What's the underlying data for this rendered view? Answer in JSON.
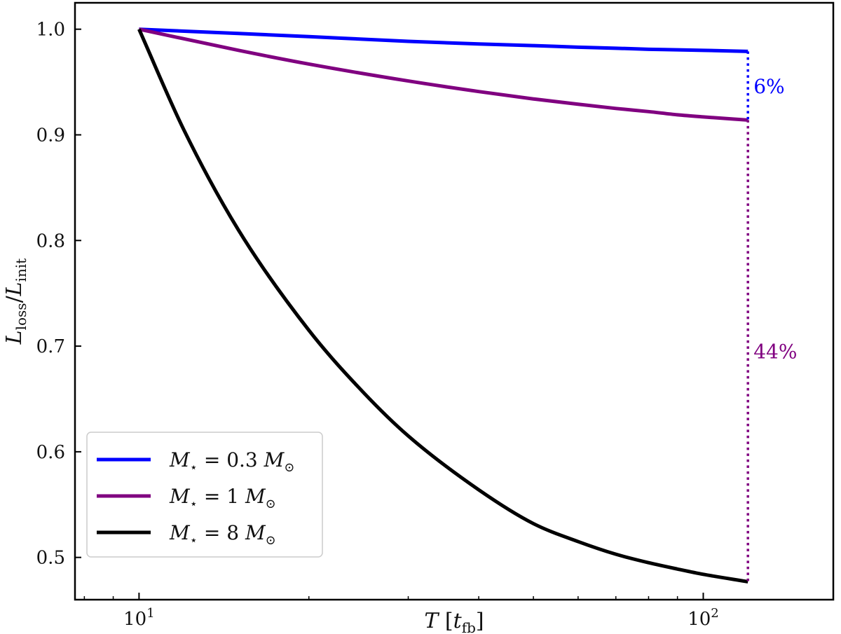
{
  "chart_data": {
    "type": "line",
    "x_scale": "log",
    "xlim": [
      7.7,
      170
    ],
    "ylim": [
      0.46,
      1.025
    ],
    "xlabel": "T [t_fb]",
    "ylabel": "L_loss / L_init",
    "x_ticks": [
      {
        "value": 10,
        "base": "10",
        "exp": "1"
      },
      {
        "value": 100,
        "base": "10",
        "exp": "2"
      }
    ],
    "y_ticks": [
      {
        "value": 0.5,
        "label": "0.5"
      },
      {
        "value": 0.6,
        "label": "0.6"
      },
      {
        "value": 0.7,
        "label": "0.7"
      },
      {
        "value": 0.8,
        "label": "0.8"
      },
      {
        "value": 0.9,
        "label": "0.9"
      },
      {
        "value": 1.0,
        "label": "1.0"
      }
    ],
    "grid": false,
    "legend": "bottom-left",
    "series": [
      {
        "name": "M⋆ = 0.3 M⊙",
        "label_parts": {
          "value": "0.3"
        },
        "color": "#0000ff",
        "x": [
          10,
          15,
          20,
          30,
          40,
          50,
          60,
          70,
          80,
          90,
          100,
          120
        ],
        "y": [
          1.0,
          0.996,
          0.993,
          0.9885,
          0.986,
          0.9845,
          0.983,
          0.982,
          0.981,
          0.9805,
          0.98,
          0.979
        ]
      },
      {
        "name": "M⋆ = 1 M⊙",
        "label_parts": {
          "value": "1"
        },
        "color": "#800080",
        "x": [
          10,
          15,
          20,
          30,
          40,
          50,
          60,
          70,
          80,
          90,
          100,
          120
        ],
        "y": [
          1.0,
          0.98,
          0.967,
          0.951,
          0.941,
          0.934,
          0.929,
          0.925,
          0.922,
          0.919,
          0.917,
          0.914
        ]
      },
      {
        "name": "M⋆ = 8 M⊙",
        "label_parts": {
          "value": "8"
        },
        "color": "#000000",
        "x": [
          10,
          12,
          15,
          20,
          25,
          30,
          40,
          50,
          60,
          70,
          80,
          90,
          100,
          120
        ],
        "y": [
          1.0,
          0.905,
          0.81,
          0.715,
          0.656,
          0.615,
          0.564,
          0.532,
          0.515,
          0.503,
          0.495,
          0.489,
          0.484,
          0.477
        ]
      }
    ],
    "annotations": [
      {
        "text": "6%",
        "color": "#0000ff",
        "x": 120,
        "y_from": 0.979,
        "y_to": 0.914,
        "y_text": 0.946
      },
      {
        "text": "44%",
        "color": "#800080",
        "x": 120,
        "y_from": 0.914,
        "y_to": 0.477,
        "y_text": 0.695
      }
    ]
  }
}
